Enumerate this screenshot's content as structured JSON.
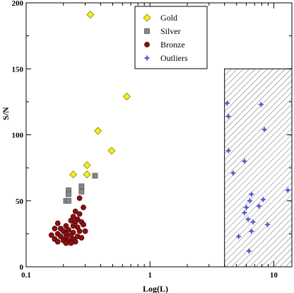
{
  "chart_data": {
    "type": "scatter",
    "title": "",
    "xlabel": "Log(L)",
    "ylabel": "S/N",
    "x_scale": "log",
    "xlim": [
      0.1,
      14
    ],
    "ylim": [
      0,
      200
    ],
    "x_ticks": [
      {
        "value": 0.1,
        "label": "0.1"
      },
      {
        "value": 1,
        "label": "1"
      },
      {
        "value": 10,
        "label": "10"
      }
    ],
    "y_ticks": [
      {
        "value": 0,
        "label": "0"
      },
      {
        "value": 50,
        "label": "50"
      },
      {
        "value": 100,
        "label": "100"
      },
      {
        "value": 150,
        "label": "150"
      },
      {
        "value": 200,
        "label": "200"
      }
    ],
    "grid": false,
    "legend_position": "top-right",
    "hatched_region": {
      "x": [
        4.0,
        14
      ],
      "y": [
        0,
        150
      ]
    },
    "series": [
      {
        "name": "Gold",
        "marker": "diamond",
        "color": "#f5ee1a",
        "points": [
          {
            "x": 0.33,
            "y": 191
          },
          {
            "x": 0.65,
            "y": 129
          },
          {
            "x": 0.38,
            "y": 103
          },
          {
            "x": 0.49,
            "y": 88
          },
          {
            "x": 0.31,
            "y": 77
          },
          {
            "x": 0.24,
            "y": 70
          },
          {
            "x": 0.31,
            "y": 70
          }
        ]
      },
      {
        "name": "Silver",
        "marker": "square",
        "color": "#888888",
        "points": [
          {
            "x": 0.36,
            "y": 69
          },
          {
            "x": 0.28,
            "y": 61
          },
          {
            "x": 0.22,
            "y": 58
          },
          {
            "x": 0.28,
            "y": 57
          },
          {
            "x": 0.22,
            "y": 55
          },
          {
            "x": 0.21,
            "y": 50
          },
          {
            "x": 0.22,
            "y": 50
          }
        ]
      },
      {
        "name": "Bronze",
        "marker": "circle",
        "color": "#8b0f0f",
        "points": [
          {
            "x": 0.27,
            "y": 52
          },
          {
            "x": 0.29,
            "y": 45
          },
          {
            "x": 0.25,
            "y": 42
          },
          {
            "x": 0.27,
            "y": 40
          },
          {
            "x": 0.24,
            "y": 38
          },
          {
            "x": 0.26,
            "y": 36
          },
          {
            "x": 0.23,
            "y": 35
          },
          {
            "x": 0.28,
            "y": 34
          },
          {
            "x": 0.25,
            "y": 34
          },
          {
            "x": 0.18,
            "y": 33
          },
          {
            "x": 0.29,
            "y": 32
          },
          {
            "x": 0.21,
            "y": 31
          },
          {
            "x": 0.24,
            "y": 31
          },
          {
            "x": 0.26,
            "y": 30
          },
          {
            "x": 0.19,
            "y": 29
          },
          {
            "x": 0.17,
            "y": 29
          },
          {
            "x": 0.22,
            "y": 28
          },
          {
            "x": 0.27,
            "y": 27
          },
          {
            "x": 0.3,
            "y": 27
          },
          {
            "x": 0.2,
            "y": 27
          },
          {
            "x": 0.24,
            "y": 26
          },
          {
            "x": 0.21,
            "y": 25
          },
          {
            "x": 0.18,
            "y": 25
          },
          {
            "x": 0.16,
            "y": 24
          },
          {
            "x": 0.23,
            "y": 24
          },
          {
            "x": 0.26,
            "y": 23
          },
          {
            "x": 0.19,
            "y": 23
          },
          {
            "x": 0.28,
            "y": 22
          },
          {
            "x": 0.21,
            "y": 22
          },
          {
            "x": 0.17,
            "y": 21
          },
          {
            "x": 0.24,
            "y": 21
          },
          {
            "x": 0.2,
            "y": 20
          },
          {
            "x": 0.22,
            "y": 20
          },
          {
            "x": 0.18,
            "y": 19
          },
          {
            "x": 0.25,
            "y": 19
          },
          {
            "x": 0.21,
            "y": 18
          },
          {
            "x": 0.23,
            "y": 18
          }
        ]
      },
      {
        "name": "Outliers",
        "marker": "star",
        "color": "#5a5ad0",
        "points": [
          {
            "x": 4.2,
            "y": 124
          },
          {
            "x": 7.9,
            "y": 123
          },
          {
            "x": 4.3,
            "y": 114
          },
          {
            "x": 8.4,
            "y": 104
          },
          {
            "x": 4.3,
            "y": 88
          },
          {
            "x": 5.8,
            "y": 80
          },
          {
            "x": 4.7,
            "y": 71
          },
          {
            "x": 13.0,
            "y": 58
          },
          {
            "x": 6.6,
            "y": 55
          },
          {
            "x": 8.2,
            "y": 51
          },
          {
            "x": 6.4,
            "y": 50
          },
          {
            "x": 7.6,
            "y": 46
          },
          {
            "x": 6.0,
            "y": 45
          },
          {
            "x": 5.8,
            "y": 41
          },
          {
            "x": 6.2,
            "y": 36
          },
          {
            "x": 6.8,
            "y": 34
          },
          {
            "x": 8.9,
            "y": 32
          },
          {
            "x": 5.2,
            "y": 23
          },
          {
            "x": 6.6,
            "y": 27
          },
          {
            "x": 6.3,
            "y": 12
          }
        ]
      }
    ]
  }
}
